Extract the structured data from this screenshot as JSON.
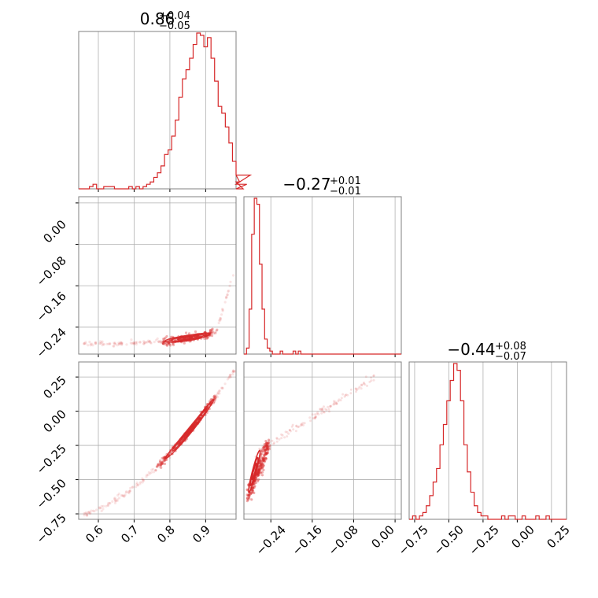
{
  "colors": {
    "series": "#d62728",
    "grid": "#b0b0b0",
    "frame": "#808080"
  },
  "chart_data": [
    {
      "type": "histogram",
      "panel": "row1-col1",
      "title": {
        "main": "0.86",
        "sup": "+0.04",
        "sub": "−0.05"
      },
      "xlim": [
        0.545,
        0.985
      ],
      "xticks": [
        0.6,
        0.7,
        0.8,
        0.9
      ],
      "grid": true,
      "bins": {
        "x0": 0.545,
        "dx": 0.01,
        "counts": [
          0,
          0,
          0,
          1,
          2,
          0,
          0,
          1,
          1,
          1,
          0,
          0,
          0,
          0,
          1,
          0,
          1,
          0,
          1,
          2,
          3,
          5,
          7,
          10,
          15,
          17,
          23,
          30,
          40,
          48,
          52,
          57,
          63,
          68,
          67,
          62,
          66,
          57,
          47,
          36,
          33,
          27,
          20,
          12,
          6,
          3,
          0,
          2,
          6
        ]
      }
    },
    {
      "type": "scatter",
      "panel": "row2-col1",
      "xlim": [
        0.545,
        0.985
      ],
      "ylim": [
        -0.292,
        0.012
      ],
      "xticks": [
        0.6,
        0.7,
        0.8,
        0.9
      ],
      "yticks": [
        "0.00",
        "−0.08",
        "−0.16",
        "−0.24"
      ],
      "ytick_values": [
        0.0,
        -0.08,
        -0.16,
        -0.24
      ],
      "grid": true
    },
    {
      "type": "histogram",
      "panel": "row2-col2",
      "title": {
        "main": "−0.27",
        "sup": "+0.01",
        "sub": "−0.01"
      },
      "xlim": [
        -0.292,
        0.012
      ],
      "xticks": [
        -0.24,
        -0.16,
        -0.08,
        0.0
      ],
      "grid": true,
      "bins": {
        "x0": -0.292,
        "dx": 0.005,
        "counts": [
          0,
          2,
          15,
          40,
          52,
          50,
          30,
          15,
          5,
          2,
          1,
          0,
          0,
          0,
          1,
          0,
          0,
          0,
          0,
          1,
          0,
          1,
          0,
          0,
          0,
          0,
          0,
          0,
          0,
          0,
          0,
          0,
          0,
          0,
          0,
          0,
          0,
          0,
          0,
          0,
          0,
          0,
          0,
          0,
          0,
          0,
          0,
          0,
          0,
          0,
          0,
          0,
          0,
          0,
          0,
          0,
          0,
          0,
          0,
          0,
          0
        ]
      }
    },
    {
      "type": "scatter",
      "panel": "row3-col1",
      "xlim": [
        0.545,
        0.985
      ],
      "ylim": [
        -0.79,
        0.36
      ],
      "xticks": [
        0.6,
        0.7,
        0.8,
        0.9
      ],
      "yticks": [
        "0.25",
        "0.00",
        "−0.25",
        "−0.50",
        "−0.75"
      ],
      "ytick_values": [
        0.25,
        0.0,
        -0.25,
        -0.5,
        -0.75
      ],
      "grid": true
    },
    {
      "type": "scatter",
      "panel": "row3-col2",
      "xlim": [
        -0.292,
        0.012
      ],
      "ylim": [
        -0.79,
        0.36
      ],
      "xticks": [
        -0.24,
        -0.16,
        -0.08,
        0.0
      ],
      "yticks": [
        0.25,
        0.0,
        -0.25,
        -0.5,
        -0.75
      ],
      "grid": true
    },
    {
      "type": "histogram",
      "panel": "row3-col3",
      "title": {
        "main": "−0.44",
        "sup": "+0.08",
        "sub": "−0.07"
      },
      "xlim": [
        -0.79,
        0.36
      ],
      "xticks": [
        -0.75,
        -0.5,
        -0.25,
        0.0,
        0.25
      ],
      "grid": true,
      "bins": {
        "x0": -0.79,
        "dx": 0.025,
        "counts": [
          0,
          1,
          0,
          1,
          2,
          4,
          7,
          11,
          15,
          22,
          28,
          35,
          41,
          46,
          44,
          35,
          22,
          14,
          8,
          4,
          2,
          1,
          1,
          0,
          0,
          0,
          0,
          1,
          0,
          1,
          1,
          0,
          0,
          1,
          0,
          0,
          0,
          1,
          0,
          0,
          1,
          0,
          0,
          0,
          0,
          0,
          0
        ]
      }
    }
  ],
  "labels": {
    "x_col1": [
      "0.6",
      "0.7",
      "0.8",
      "0.9"
    ],
    "x_col2": [
      "−0.24",
      "−0.16",
      "−0.08",
      "0.00"
    ],
    "x_col3": [
      "−0.75",
      "−0.50",
      "−0.25",
      "0.00",
      "0.25"
    ]
  }
}
